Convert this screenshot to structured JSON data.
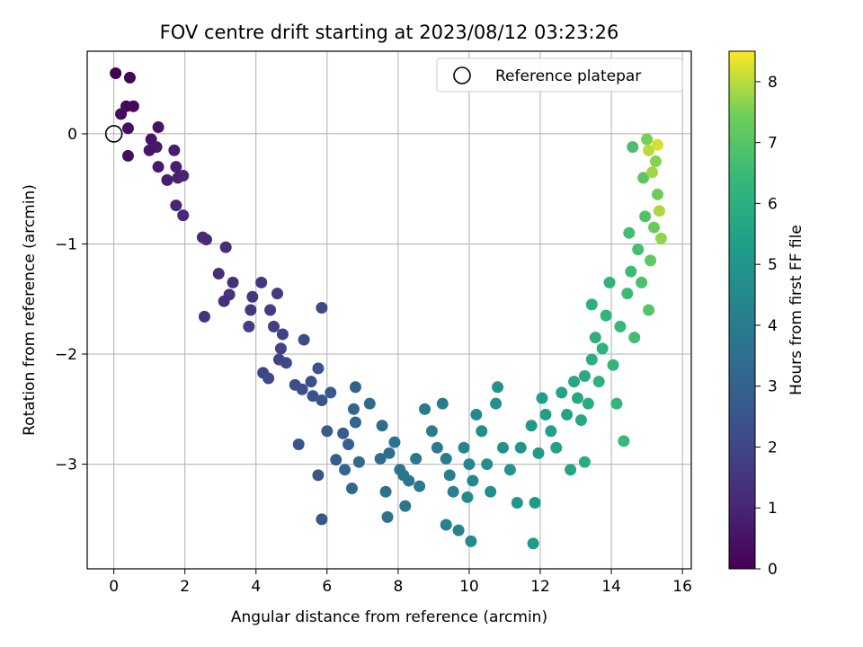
{
  "chart_data": {
    "type": "scatter",
    "title": "FOV centre drift starting at 2023/08/12 03:23:26",
    "xlabel": "Angular distance from reference (arcmin)",
    "ylabel": "Rotation from reference (arcmin)",
    "xlim": [
      -0.75,
      16.25
    ],
    "ylim": [
      -3.95,
      0.75
    ],
    "xticks": [
      0,
      2,
      4,
      6,
      8,
      10,
      12,
      14,
      16
    ],
    "yticks": [
      0,
      -1,
      -2,
      -3
    ],
    "grid": true,
    "legend": {
      "position": "upper right",
      "entries": [
        "Reference platepar"
      ]
    },
    "reference_point": {
      "x": 0,
      "y": 0
    },
    "colorbar": {
      "label": "Hours from first FF file",
      "range": [
        0,
        8.5
      ],
      "ticks": [
        0,
        1,
        2,
        3,
        4,
        5,
        6,
        7,
        8
      ],
      "colormap": "viridis"
    },
    "points": [
      [
        0.05,
        0.55,
        0.0
      ],
      [
        0.45,
        0.51,
        0.1
      ],
      [
        0.35,
        0.25,
        0.2
      ],
      [
        0.55,
        0.25,
        0.25
      ],
      [
        0.2,
        0.18,
        0.3
      ],
      [
        0.4,
        0.05,
        0.35
      ],
      [
        0.4,
        -0.2,
        0.4
      ],
      [
        1.25,
        0.06,
        0.5
      ],
      [
        1.05,
        -0.05,
        0.55
      ],
      [
        1.0,
        -0.15,
        0.6
      ],
      [
        1.2,
        -0.12,
        0.65
      ],
      [
        1.25,
        -0.3,
        0.7
      ],
      [
        1.5,
        -0.42,
        0.75
      ],
      [
        1.7,
        -0.15,
        0.8
      ],
      [
        1.75,
        -0.3,
        0.85
      ],
      [
        1.8,
        -0.4,
        0.9
      ],
      [
        1.95,
        -0.38,
        0.95
      ],
      [
        1.75,
        -0.65,
        1.0
      ],
      [
        1.95,
        -0.74,
        1.05
      ],
      [
        2.5,
        -0.94,
        1.1
      ],
      [
        2.6,
        -0.96,
        1.15
      ],
      [
        3.15,
        -1.03,
        1.2
      ],
      [
        2.95,
        -1.27,
        1.25
      ],
      [
        3.1,
        -1.52,
        1.3
      ],
      [
        3.35,
        -1.35,
        1.35
      ],
      [
        3.25,
        -1.46,
        1.4
      ],
      [
        2.55,
        -1.66,
        1.45
      ],
      [
        4.15,
        -1.35,
        1.5
      ],
      [
        3.9,
        -1.48,
        1.55
      ],
      [
        3.85,
        -1.6,
        1.6
      ],
      [
        4.6,
        -1.45,
        1.65
      ],
      [
        4.4,
        -1.6,
        1.7
      ],
      [
        3.8,
        -1.75,
        1.75
      ],
      [
        4.5,
        -1.75,
        1.8
      ],
      [
        4.75,
        -1.82,
        1.85
      ],
      [
        4.7,
        -1.95,
        1.9
      ],
      [
        4.65,
        -2.05,
        1.95
      ],
      [
        4.2,
        -2.17,
        2.0
      ],
      [
        4.35,
        -2.22,
        2.05
      ],
      [
        4.85,
        -2.08,
        2.1
      ],
      [
        5.35,
        -1.87,
        2.15
      ],
      [
        5.85,
        -1.58,
        2.2
      ],
      [
        5.1,
        -2.28,
        2.25
      ],
      [
        5.3,
        -2.32,
        2.3
      ],
      [
        5.55,
        -2.25,
        2.35
      ],
      [
        5.75,
        -2.13,
        2.4
      ],
      [
        5.6,
        -2.38,
        2.45
      ],
      [
        5.85,
        -2.42,
        2.5
      ],
      [
        5.2,
        -2.82,
        2.5
      ],
      [
        5.75,
        -3.1,
        2.55
      ],
      [
        5.85,
        -3.5,
        2.6
      ],
      [
        6.1,
        -2.35,
        2.7
      ],
      [
        6.0,
        -2.7,
        2.75
      ],
      [
        6.25,
        -2.96,
        2.8
      ],
      [
        6.45,
        -2.72,
        2.85
      ],
      [
        6.6,
        -2.82,
        2.9
      ],
      [
        6.8,
        -2.3,
        3.0
      ],
      [
        6.75,
        -2.5,
        3.05
      ],
      [
        6.8,
        -2.62,
        3.1
      ],
      [
        6.5,
        -3.05,
        3.15
      ],
      [
        6.7,
        -3.22,
        3.2
      ],
      [
        6.9,
        -2.98,
        3.25
      ],
      [
        7.2,
        -2.45,
        3.3
      ],
      [
        7.55,
        -2.65,
        3.35
      ],
      [
        7.5,
        -2.95,
        3.4
      ],
      [
        7.75,
        -2.9,
        3.45
      ],
      [
        7.65,
        -3.25,
        3.5
      ],
      [
        7.7,
        -3.48,
        3.55
      ],
      [
        7.9,
        -2.8,
        3.6
      ],
      [
        8.05,
        -3.05,
        3.65
      ],
      [
        8.15,
        -3.1,
        3.7
      ],
      [
        8.3,
        -3.15,
        3.75
      ],
      [
        8.2,
        -3.38,
        3.8
      ],
      [
        8.5,
        -2.95,
        3.85
      ],
      [
        8.6,
        -3.2,
        3.9
      ],
      [
        8.75,
        -2.5,
        3.9
      ],
      [
        8.95,
        -2.7,
        3.95
      ],
      [
        9.1,
        -2.85,
        4.0
      ],
      [
        9.25,
        -2.45,
        4.05
      ],
      [
        9.35,
        -2.95,
        4.1
      ],
      [
        9.45,
        -3.1,
        4.15
      ],
      [
        9.55,
        -3.25,
        4.2
      ],
      [
        9.35,
        -3.55,
        4.25
      ],
      [
        9.7,
        -3.6,
        4.3
      ],
      [
        9.85,
        -2.85,
        4.35
      ],
      [
        10.0,
        -3.0,
        4.4
      ],
      [
        10.1,
        -3.15,
        4.45
      ],
      [
        9.95,
        -3.3,
        4.5
      ],
      [
        10.05,
        -3.7,
        4.55
      ],
      [
        10.2,
        -2.55,
        4.6
      ],
      [
        10.35,
        -2.7,
        4.65
      ],
      [
        10.5,
        -3.0,
        4.7
      ],
      [
        10.6,
        -3.25,
        4.75
      ],
      [
        10.75,
        -2.45,
        4.8
      ],
      [
        10.8,
        -2.3,
        4.85
      ],
      [
        10.95,
        -2.85,
        4.9
      ],
      [
        11.15,
        -3.05,
        4.95
      ],
      [
        11.35,
        -3.35,
        5.0
      ],
      [
        11.45,
        -2.85,
        5.05
      ],
      [
        11.75,
        -2.65,
        5.1
      ],
      [
        11.95,
        -2.9,
        5.15
      ],
      [
        11.85,
        -3.35,
        5.2
      ],
      [
        11.8,
        -3.72,
        5.25
      ],
      [
        12.05,
        -2.4,
        5.3
      ],
      [
        12.15,
        -2.55,
        5.35
      ],
      [
        12.3,
        -2.7,
        5.4
      ],
      [
        12.45,
        -2.85,
        5.45
      ],
      [
        12.6,
        -2.35,
        5.5
      ],
      [
        12.75,
        -2.55,
        5.55
      ],
      [
        12.85,
        -3.05,
        5.6
      ],
      [
        12.95,
        -2.25,
        5.65
      ],
      [
        13.05,
        -2.4,
        5.7
      ],
      [
        13.15,
        -2.6,
        5.75
      ],
      [
        13.25,
        -2.2,
        5.8
      ],
      [
        13.35,
        -2.45,
        5.85
      ],
      [
        13.25,
        -2.98,
        5.9
      ],
      [
        13.45,
        -2.05,
        5.95
      ],
      [
        13.55,
        -1.85,
        6.0
      ],
      [
        13.45,
        -1.55,
        6.05
      ],
      [
        13.65,
        -2.25,
        6.1
      ],
      [
        13.75,
        -1.95,
        6.15
      ],
      [
        13.85,
        -1.65,
        6.2
      ],
      [
        13.95,
        -1.35,
        6.25
      ],
      [
        14.05,
        -2.1,
        6.3
      ],
      [
        14.15,
        -2.45,
        6.35
      ],
      [
        14.25,
        -1.75,
        6.4
      ],
      [
        14.35,
        -2.79,
        6.45
      ],
      [
        14.45,
        -1.45,
        6.5
      ],
      [
        14.55,
        -1.25,
        6.55
      ],
      [
        14.5,
        -0.9,
        6.6
      ],
      [
        14.65,
        -1.85,
        6.65
      ],
      [
        14.75,
        -1.05,
        6.7
      ],
      [
        14.6,
        -0.12,
        6.75
      ],
      [
        14.85,
        -1.35,
        6.8
      ],
      [
        14.95,
        -0.75,
        6.9
      ],
      [
        15.05,
        -1.6,
        7.0
      ],
      [
        14.9,
        -0.4,
        7.1
      ],
      [
        15.1,
        -1.15,
        7.2
      ],
      [
        15.2,
        -0.85,
        7.3
      ],
      [
        15.3,
        -0.55,
        7.4
      ],
      [
        15.0,
        -0.05,
        7.5
      ],
      [
        15.25,
        -0.25,
        7.6
      ],
      [
        15.4,
        -0.95,
        7.7
      ],
      [
        15.15,
        -0.35,
        7.8
      ],
      [
        15.35,
        -0.7,
        7.9
      ],
      [
        15.05,
        -0.15,
        8.0
      ],
      [
        15.3,
        -0.1,
        8.2
      ]
    ]
  }
}
